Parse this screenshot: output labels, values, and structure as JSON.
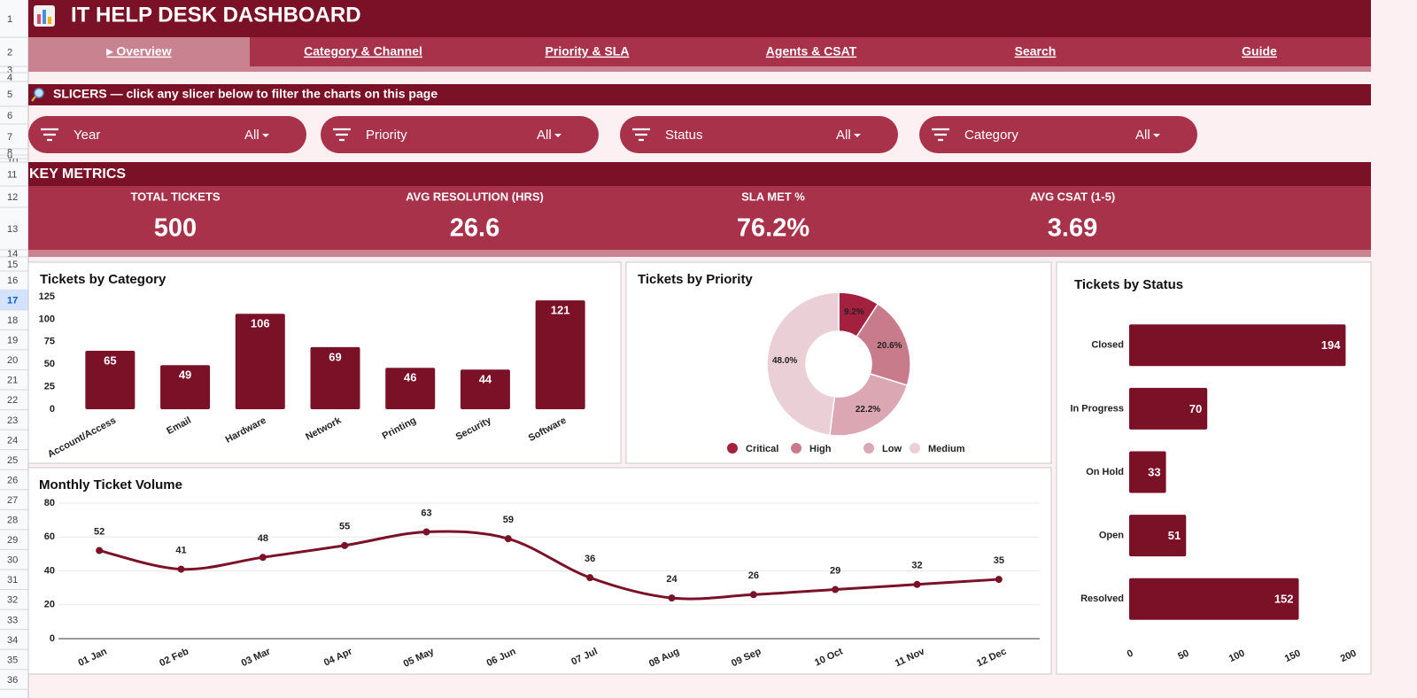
{
  "header": {
    "title": "IT HELP DESK DASHBOARD"
  },
  "nav": [
    "▸ Overview",
    "Category & Channel",
    "Priority & SLA",
    "Agents & CSAT",
    "Search",
    "Guide"
  ],
  "slicers": {
    "heading": "SLICERS  —  click any slicer below to filter the charts on this page",
    "items": [
      {
        "label": "Year",
        "value": "All"
      },
      {
        "label": "Priority",
        "value": "All"
      },
      {
        "label": "Status",
        "value": "All"
      },
      {
        "label": "Category",
        "value": "All"
      }
    ]
  },
  "key_metrics": {
    "heading": "KEY METRICS",
    "items": [
      {
        "label": "TOTAL TICKETS",
        "value": 500
      },
      {
        "label": "AVG RESOLUTION (HRS)",
        "value": 26.6
      },
      {
        "label": "SLA MET %",
        "value": "76.2%"
      },
      {
        "label": "AVG CSAT (1-5)",
        "value": 3.69
      }
    ]
  },
  "row_headers": [
    1,
    2,
    3,
    4,
    5,
    6,
    7,
    8,
    9,
    10,
    11,
    12,
    13,
    14,
    15,
    16,
    17,
    18,
    19,
    20,
    21,
    22,
    23,
    24,
    25,
    26,
    27,
    28,
    29,
    30,
    31,
    32,
    33,
    34,
    35,
    36
  ],
  "chart_data": [
    {
      "type": "bar",
      "title": "Tickets by Category",
      "categories": [
        "Account/Access",
        "Email",
        "Hardware",
        "Network",
        "Printing",
        "Security",
        "Software"
      ],
      "values": [
        65,
        49,
        106,
        69,
        46,
        44,
        121
      ],
      "color": "#7b1126",
      "ylim": [
        0,
        125
      ],
      "yticks": [
        0,
        25,
        50,
        75,
        100,
        125
      ],
      "grid": false
    },
    {
      "type": "pie",
      "title": "Tickets by Priority",
      "donut": true,
      "categories": [
        "Critical",
        "High",
        "Low",
        "Medium"
      ],
      "values": [
        9.2,
        20.6,
        22.2,
        48.0
      ],
      "value_labels": [
        "9.2%",
        "20.6%",
        "22.2%",
        "48.0%"
      ],
      "colors": [
        "#a3203f",
        "#c77b8b",
        "#dba7b2",
        "#ead0d6"
      ],
      "legend": "bottom"
    },
    {
      "type": "line",
      "title": "Monthly Ticket Volume",
      "categories": [
        "01 Jan",
        "02 Feb",
        "03 Mar",
        "04 Apr",
        "05 May",
        "06 Jun",
        "07 Jul",
        "08 Aug",
        "09 Sep",
        "10 Oct",
        "11 Nov",
        "12 Dec"
      ],
      "values": [
        52,
        41,
        48,
        55,
        63,
        59,
        36,
        24,
        26,
        29,
        32,
        35
      ],
      "color": "#7b1126",
      "ylim": [
        0,
        80
      ],
      "yticks": [
        0,
        20,
        40,
        60,
        80
      ],
      "grid": true,
      "smooth": true
    },
    {
      "type": "hbar",
      "title": "Tickets by Status",
      "categories": [
        "Closed",
        "In Progress",
        "On Hold",
        "Open",
        "Resolved"
      ],
      "values": [
        194,
        70,
        33,
        51,
        152
      ],
      "color": "#7b1126",
      "xlim": [
        0,
        200
      ],
      "xticks": [
        0,
        50,
        100,
        150,
        200
      ],
      "grid": false
    }
  ]
}
